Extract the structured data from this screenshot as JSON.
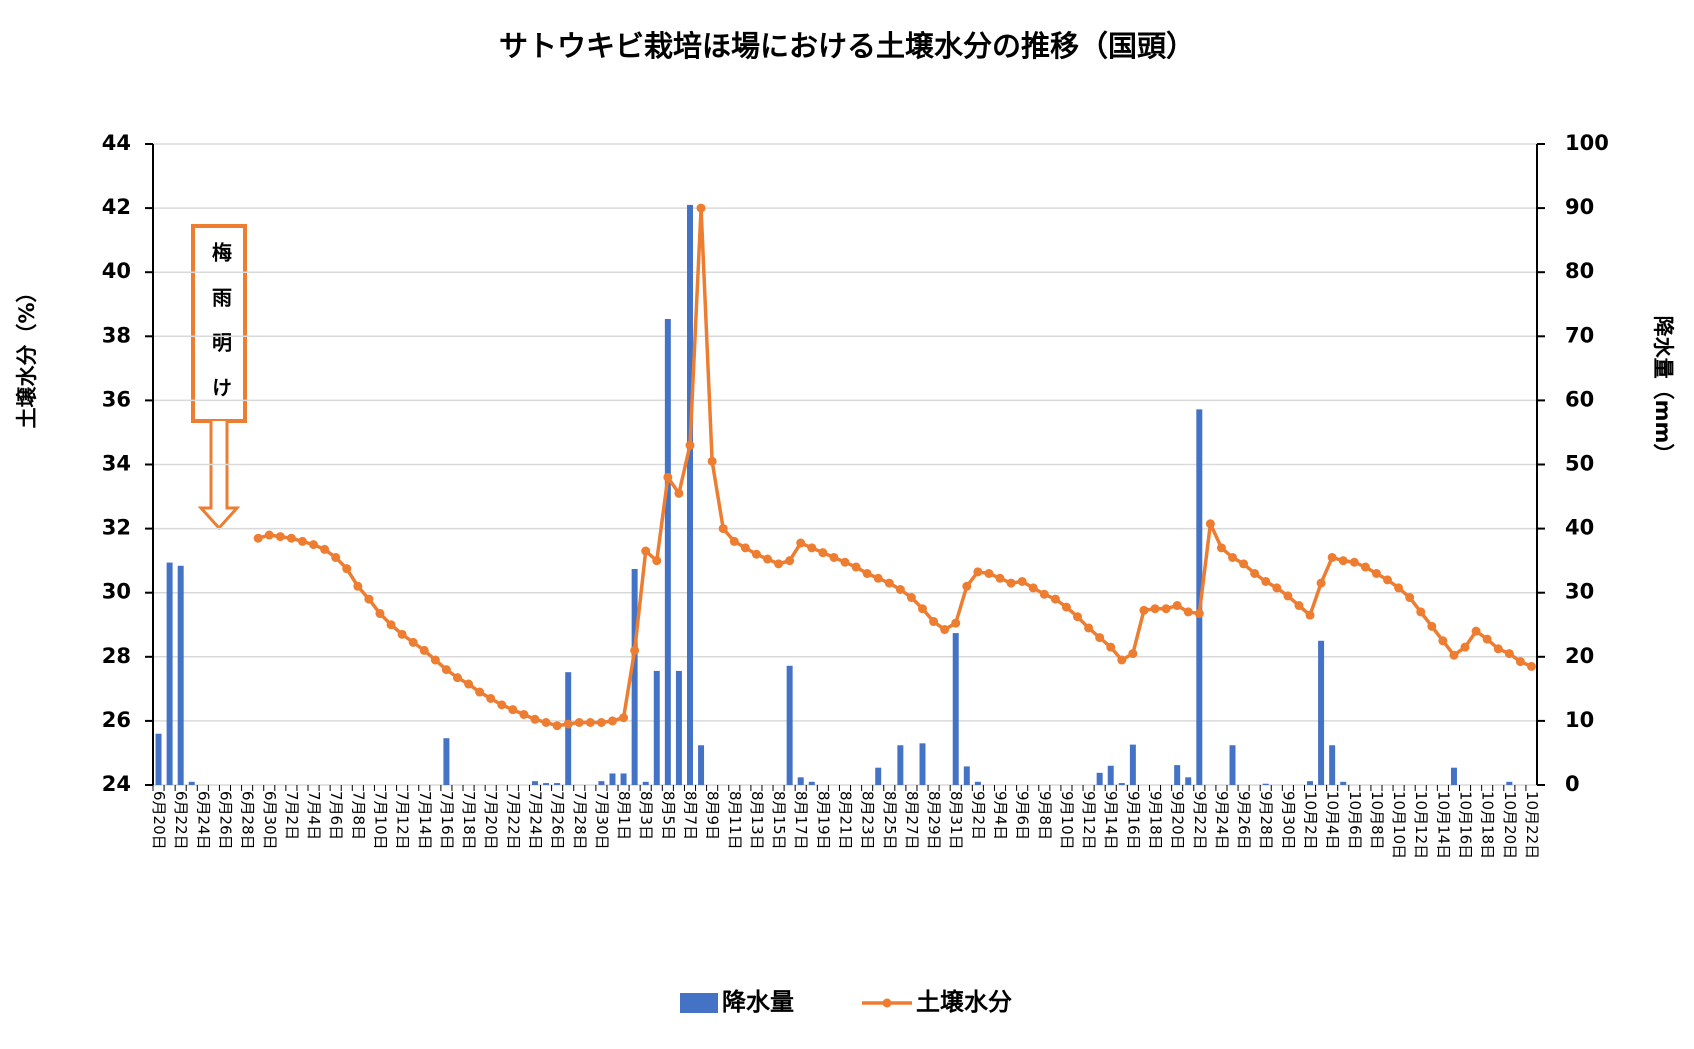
{
  "chart_data": {
    "type": "bar",
    "title": "サトウキビ栽培ほ場における土壌水分の推移（国頭）",
    "y_label": "土壌水分（%）",
    "y2_label": "降水量（mm）",
    "annotation": "梅雨明け",
    "categories": [
      "6月20日",
      null,
      "6月22日",
      null,
      "6月24日",
      null,
      "6月26日",
      null,
      "6月28日",
      null,
      "6月30日",
      null,
      "7月2日",
      null,
      "7月4日",
      null,
      "7月6日",
      null,
      "7月8日",
      null,
      "7月10日",
      null,
      "7月12日",
      null,
      "7月14日",
      null,
      "7月16日",
      null,
      "7月18日",
      null,
      "7月20日",
      null,
      "7月22日",
      null,
      "7月24日",
      null,
      "7月26日",
      null,
      "7月28日",
      null,
      "7月30日",
      null,
      "8月1日",
      null,
      "8月3日",
      null,
      "8月5日",
      null,
      "8月7日",
      null,
      "8月9日",
      null,
      "8月11日",
      null,
      "8月13日",
      null,
      "8月15日",
      null,
      "8月17日",
      null,
      "8月19日",
      null,
      "8月21日",
      null,
      "8月23日",
      null,
      "8月25日",
      null,
      "8月27日",
      null,
      "8月29日",
      null,
      "8月31日",
      null,
      "9月2日",
      null,
      "9月4日",
      null,
      "9月6日",
      null,
      "9月8日",
      null,
      "9月10日",
      null,
      "9月12日",
      null,
      "9月14日",
      null,
      "9月16日",
      null,
      "9月18日",
      null,
      "9月20日",
      null,
      "9月22日",
      null,
      "9月24日",
      null,
      "9月26日",
      null,
      "9月28日",
      null,
      "9月30日",
      null,
      "10月2日",
      null,
      "10月4日",
      null,
      "10月6日",
      null,
      "10月8日",
      null,
      "10月10日",
      null,
      "10月12日",
      null,
      "10月14日",
      null,
      "10月16日",
      null,
      "10月18日",
      null,
      "10月20日",
      null,
      "10月22日"
    ],
    "series": [
      {
        "name": "降水量",
        "type": "bar",
        "axis": "y2",
        "color": "#4472c4",
        "values": [
          8,
          34.7,
          34.2,
          0.5,
          0,
          0,
          0,
          0,
          0,
          0,
          0,
          0,
          0,
          0,
          0,
          0,
          0,
          0,
          0,
          0,
          0,
          0,
          0,
          0,
          0,
          0,
          7.3,
          0,
          0,
          0,
          0,
          0,
          0,
          0,
          0.6,
          0.3,
          0.3,
          17.6,
          0,
          0,
          0.6,
          1.8,
          1.8,
          33.7,
          0.5,
          17.8,
          72.7,
          17.8,
          90.5,
          6.2,
          0,
          0,
          0,
          0,
          0,
          0,
          0,
          18.6,
          1.2,
          0.5,
          0,
          0,
          0,
          0,
          0,
          2.7,
          0,
          6.2,
          0,
          6.5,
          0,
          0,
          23.7,
          2.9,
          0.5,
          0,
          0,
          0,
          0,
          0,
          0,
          0,
          0,
          0,
          0,
          1.9,
          3,
          0.3,
          6.3,
          0,
          0,
          0,
          3.1,
          1.2,
          58.6,
          0,
          0,
          6.2,
          0,
          0,
          0.2,
          0,
          0,
          0,
          0.6,
          22.5,
          6.2,
          0.5,
          0,
          0,
          0,
          0,
          0,
          0,
          0,
          0,
          0,
          2.7,
          0,
          0,
          0,
          0,
          0.5,
          0,
          0
        ]
      },
      {
        "name": "土壌水分",
        "type": "line",
        "color": "#ed7d31",
        "values": [
          null,
          null,
          null,
          null,
          null,
          null,
          null,
          null,
          null,
          31.7,
          31.8,
          31.75,
          31.7,
          31.6,
          31.5,
          31.35,
          31.1,
          30.75,
          30.2,
          29.8,
          29.35,
          29.0,
          28.7,
          28.45,
          28.2,
          27.9,
          27.6,
          27.35,
          27.15,
          26.9,
          26.7,
          26.5,
          26.35,
          26.2,
          26.05,
          25.95,
          25.85,
          25.9,
          25.95,
          25.95,
          25.95,
          26.0,
          26.1,
          28.2,
          31.3,
          31.0,
          33.6,
          33.1,
          34.6,
          42.0,
          34.1,
          32.0,
          31.6,
          31.4,
          31.2,
          31.05,
          30.9,
          31.0,
          31.55,
          31.4,
          31.25,
          31.1,
          30.95,
          30.8,
          30.6,
          30.45,
          30.3,
          30.1,
          29.85,
          29.5,
          29.1,
          28.85,
          29.05,
          30.2,
          30.65,
          30.6,
          30.45,
          30.3,
          30.35,
          30.15,
          29.95,
          29.8,
          29.55,
          29.25,
          28.9,
          28.6,
          28.3,
          27.9,
          28.1,
          29.45,
          29.5,
          29.5,
          29.6,
          29.4,
          29.35,
          32.15,
          31.4,
          31.1,
          30.9,
          30.6,
          30.35,
          30.15,
          29.9,
          29.6,
          29.3,
          30.3,
          31.1,
          31.0,
          30.95,
          30.8,
          30.6,
          30.4,
          30.15,
          29.85,
          29.4,
          28.95,
          28.5,
          28.05,
          28.3,
          28.8,
          28.55,
          28.25,
          28.1,
          27.85,
          27.7
        ]
      }
    ],
    "ylim": [
      24,
      44
    ],
    "yticks": [
      24,
      26,
      28,
      30,
      32,
      34,
      36,
      38,
      40,
      42,
      44
    ],
    "y2lim": [
      0,
      100
    ],
    "y2ticks": [
      0,
      10,
      20,
      30,
      40,
      50,
      60,
      70,
      80,
      90,
      100
    ],
    "grid": true,
    "legend": "bottom"
  }
}
